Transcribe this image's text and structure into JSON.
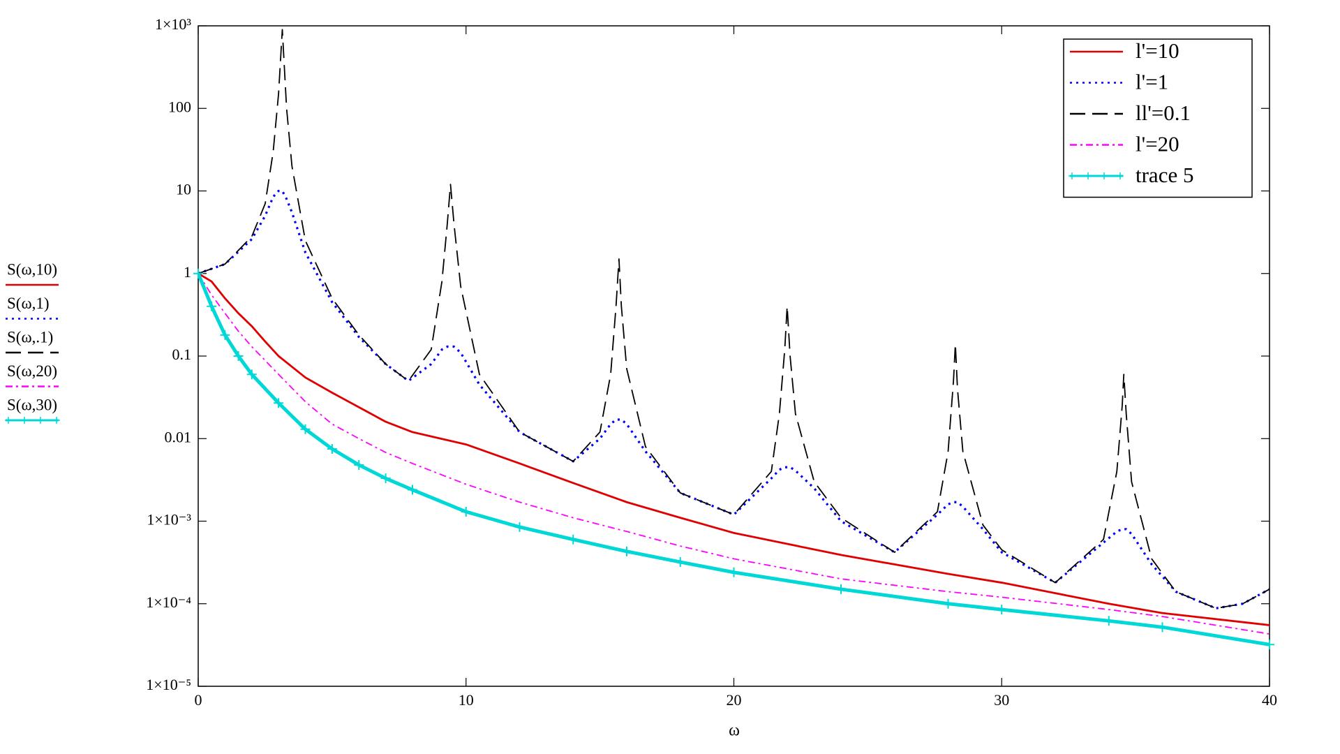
{
  "chart_data": {
    "type": "line",
    "xlabel": "ω",
    "log_scale_y": true,
    "grid": false,
    "legend": "upper right",
    "xlim": [
      0,
      40
    ],
    "xticks": [
      0,
      10,
      20,
      30,
      40
    ],
    "ylim": [
      1e-05,
      1000
    ],
    "yticks": [
      {
        "value": 1000,
        "label": "1×10³"
      },
      100,
      10,
      1,
      0.1,
      0.01,
      {
        "value": 0.001,
        "label": "1×10⁻³"
      },
      {
        "value": 0.0001,
        "label": "1×10⁻⁴"
      },
      {
        "value": 1e-05,
        "label": "1×10⁻⁵"
      }
    ],
    "series": [
      {
        "name": "l'=10",
        "expression": "S(ω,10)",
        "color": "#e00000",
        "linestyle": "solid",
        "x": [
          0,
          0.5,
          1,
          1.5,
          2,
          2.5,
          3,
          4,
          5,
          6,
          7,
          8,
          10,
          12,
          14,
          16,
          18,
          20,
          24,
          28,
          30,
          34,
          36,
          40
        ],
        "values": [
          1,
          0.8,
          0.5,
          0.33,
          0.23,
          0.15,
          0.1,
          0.055,
          0.036,
          0.024,
          0.016,
          0.012,
          0.0085,
          0.005,
          0.0029,
          0.0017,
          0.0011,
          0.00072,
          0.00039,
          0.00023,
          0.00018,
          0.0001,
          7.7e-05,
          5.5e-05
        ]
      },
      {
        "name": "l'=1",
        "expression": "S(ω,1)",
        "color": "#0000ff",
        "linestyle": "dotted",
        "x": [
          0,
          1,
          2,
          2.5,
          2.8,
          3.0,
          3.14,
          3.3,
          3.5,
          4,
          5,
          6,
          7,
          7.85,
          8.7,
          9.1,
          9.3,
          9.42,
          9.55,
          9.8,
          10.5,
          12,
          14,
          15,
          15.4,
          15.6,
          15.71,
          15.8,
          16.0,
          16.7,
          18,
          20,
          21.4,
          21.7,
          21.9,
          21.99,
          22.1,
          22.3,
          23,
          24,
          26,
          27.6,
          28.0,
          28.2,
          28.27,
          28.35,
          28.55,
          29.3,
          30,
          32,
          33.8,
          34.3,
          34.5,
          34.56,
          34.65,
          34.85,
          35.6,
          36.5,
          38,
          39,
          40
        ],
        "values": [
          1,
          1.3,
          2.6,
          5,
          8.5,
          10,
          10,
          8,
          5.5,
          1.8,
          0.45,
          0.17,
          0.08,
          0.05,
          0.08,
          0.12,
          0.13,
          0.13,
          0.13,
          0.11,
          0.045,
          0.012,
          0.0053,
          0.01,
          0.015,
          0.017,
          0.017,
          0.017,
          0.015,
          0.007,
          0.0022,
          0.0012,
          0.0033,
          0.0042,
          0.0045,
          0.0045,
          0.0045,
          0.0041,
          0.0025,
          0.001,
          0.00042,
          0.0012,
          0.0016,
          0.0017,
          0.0017,
          0.0017,
          0.0015,
          0.0008,
          0.00042,
          0.00018,
          0.00055,
          0.00075,
          0.0008,
          0.0008,
          0.0008,
          0.0007,
          0.0003,
          0.00014,
          8.8e-05,
          0.0001,
          0.00015
        ]
      },
      {
        "name": "ll'=0.1",
        "expression": "S(ω,.1)",
        "color": "#000000",
        "linestyle": "dashed",
        "x": [
          0,
          1,
          2,
          2.5,
          2.8,
          3.0,
          3.14,
          3.3,
          3.5,
          4,
          5,
          6,
          7,
          7.85,
          8.7,
          9.1,
          9.3,
          9.42,
          9.55,
          9.8,
          10.5,
          12,
          14,
          15,
          15.4,
          15.6,
          15.71,
          15.8,
          16.0,
          16.7,
          18,
          20,
          21.4,
          21.7,
          21.9,
          21.99,
          22.1,
          22.3,
          23,
          24,
          26,
          27.6,
          28.0,
          28.2,
          28.27,
          28.35,
          28.55,
          29.3,
          30,
          32,
          33.8,
          34.3,
          34.5,
          34.56,
          34.65,
          34.85,
          35.6,
          36.5,
          38,
          39,
          40
        ],
        "values": [
          1,
          1.3,
          2.8,
          7,
          30,
          150,
          900,
          100,
          20,
          2.5,
          0.5,
          0.18,
          0.08,
          0.05,
          0.12,
          0.8,
          4,
          12,
          4,
          0.7,
          0.06,
          0.012,
          0.0053,
          0.012,
          0.06,
          0.4,
          1.5,
          0.4,
          0.07,
          0.008,
          0.0022,
          0.0012,
          0.004,
          0.02,
          0.12,
          0.4,
          0.1,
          0.02,
          0.003,
          0.0011,
          0.00042,
          0.0013,
          0.007,
          0.05,
          0.14,
          0.04,
          0.007,
          0.0009,
          0.00045,
          0.00018,
          0.0006,
          0.004,
          0.025,
          0.06,
          0.02,
          0.003,
          0.00035,
          0.00014,
          8.8e-05,
          0.0001,
          0.00015
        ]
      },
      {
        "name": "l'=20",
        "expression": "S(ω,20)",
        "color": "#ff00ff",
        "linestyle": "dashdot",
        "x": [
          0,
          0.5,
          1,
          1.5,
          2,
          3,
          4,
          5,
          6,
          7,
          8,
          10,
          12,
          14,
          16,
          18,
          20,
          24,
          28,
          30,
          34,
          36,
          40
        ],
        "values": [
          1,
          0.55,
          0.33,
          0.2,
          0.13,
          0.06,
          0.028,
          0.015,
          0.01,
          0.0068,
          0.005,
          0.0028,
          0.0017,
          0.0011,
          0.00075,
          0.0005,
          0.00035,
          0.0002,
          0.00014,
          0.00012,
          8.5e-05,
          7e-05,
          4.3e-05
        ]
      },
      {
        "name": "trace 5",
        "expression": "S(ω,30)",
        "color": "#00d8d8",
        "linestyle": "solid",
        "marker": "+",
        "x": [
          0,
          0.5,
          1,
          1.5,
          2,
          3,
          4,
          5,
          6,
          7,
          8,
          10,
          12,
          14,
          16,
          18,
          20,
          24,
          28,
          30,
          34,
          36,
          40
        ],
        "values": [
          1,
          0.4,
          0.18,
          0.1,
          0.06,
          0.027,
          0.013,
          0.0075,
          0.0048,
          0.0033,
          0.0024,
          0.0013,
          0.00085,
          0.0006,
          0.00043,
          0.00032,
          0.00024,
          0.00015,
          0.0001,
          8.5e-05,
          6.2e-05,
          5.2e-05,
          3.2e-05
        ]
      }
    ]
  }
}
